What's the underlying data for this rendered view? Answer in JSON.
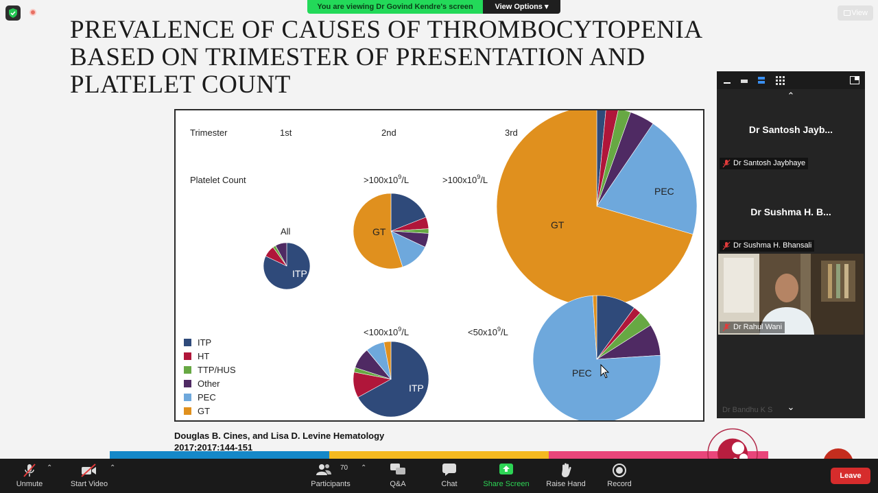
{
  "meeting": {
    "viewing_banner": "You are viewing Dr Govind Kendre's screen",
    "view_options_label": "View Options",
    "view_button_label": "View"
  },
  "slide": {
    "title_lines": [
      "PREVALENCE OF CAUSES OF THROMBOCYTOPENIA",
      "BASED ON TRIMESTER OF PRESENTATION AND",
      "PLATELET COUNT"
    ],
    "citation_lines": [
      "Douglas B. Cines, and Lisa D. Levine Hematology",
      "2017;2017:144-151"
    ],
    "stripe_colors": [
      "#1588c8",
      "#f5b920",
      "#e9457a"
    ]
  },
  "chart_data": {
    "type": "pie",
    "row_labels": {
      "trimester": "Trimester",
      "platelet_count": "Platelet Count"
    },
    "column_labels": [
      "1st",
      "2nd",
      "3rd"
    ],
    "legend": [
      "ITP",
      "HT",
      "TTP/HUS",
      "Other",
      "PEC",
      "GT"
    ],
    "colors": {
      "ITP": "#2f4a7a",
      "HT": "#b0163a",
      "TTP/HUS": "#67a843",
      "Other": "#4f2a63",
      "PEC": "#6ea8dc",
      "GT": "#e0901e"
    },
    "pies": [
      {
        "trimester": "1st",
        "platelet_label": "All",
        "slice_labels": [
          "ITP"
        ],
        "values": {
          "ITP": 82,
          "HT": 8,
          "TTP/HUS": 2,
          "Other": 8,
          "PEC": 0,
          "GT": 0
        }
      },
      {
        "trimester": "2nd",
        "platelet_label": ">100x10",
        "slice_labels": [
          "GT"
        ],
        "values": {
          "ITP": 19,
          "HT": 5,
          "TTP/HUS": 2,
          "Other": 6,
          "PEC": 13,
          "GT": 55
        }
      },
      {
        "trimester": "2nd",
        "platelet_label": "<100x10",
        "slice_labels": [
          "ITP"
        ],
        "values": {
          "ITP": 67,
          "HT": 11,
          "TTP/HUS": 2,
          "Other": 9,
          "PEC": 8,
          "GT": 3
        }
      },
      {
        "trimester": "3rd",
        "platelet_label": ">100x10",
        "slice_labels": [
          "PEC",
          "GT"
        ],
        "values": {
          "ITP": 1.5,
          "HT": 2,
          "TTP/HUS": 2,
          "Other": 4,
          "PEC": 20,
          "GT": 70.5
        }
      },
      {
        "trimester": "3rd",
        "platelet_label": "<50x10",
        "slice_labels": [
          "PEC"
        ],
        "values": {
          "ITP": 10,
          "HT": 2,
          "TTP/HUS": 4,
          "Other": 8,
          "PEC": 75,
          "GT": 1
        }
      }
    ],
    "unit_superscript": "9",
    "unit_suffix": "/L"
  },
  "participants_panel": {
    "tiles": [
      {
        "display_name": "Dr Santosh Jayb...",
        "label": "Dr Santosh Jaybhaye"
      },
      {
        "display_name": "Dr Sushma H. B...",
        "label": "Dr Sushma H. Bhansali"
      },
      {
        "display_name": "",
        "label": "Dr Rahul Wani"
      }
    ],
    "faded_name": "Dr Bandhu K S"
  },
  "toolbar": {
    "unmute": "Unmute",
    "start_video": "Start Video",
    "participants": "Participants",
    "participant_count": "70",
    "qa": "Q&A",
    "chat": "Chat",
    "share_screen": "Share Screen",
    "raise_hand": "Raise Hand",
    "record": "Record",
    "leave": "Leave"
  }
}
